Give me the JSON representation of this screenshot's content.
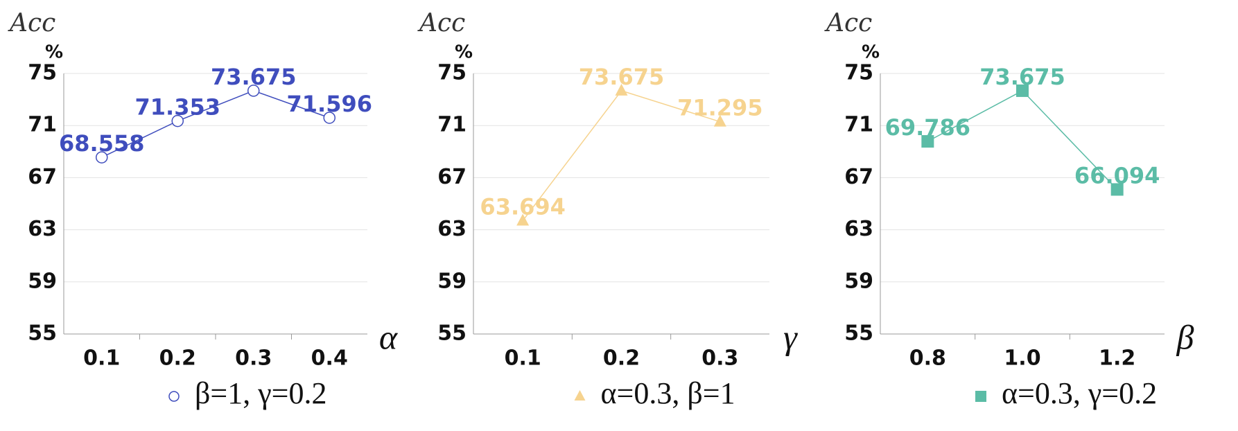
{
  "chart_data": [
    {
      "type": "line",
      "y_title": "Acc",
      "y_unit": "%",
      "x_title": "α",
      "categories": [
        "0.1",
        "0.2",
        "0.3",
        "0.4"
      ],
      "series": [
        {
          "name": "β=1, γ=0.2",
          "color": "#3f4dbd",
          "marker": "circle",
          "values": [
            68.558,
            71.353,
            73.675,
            71.596
          ]
        }
      ],
      "ylim": [
        55,
        75
      ],
      "yticks": [
        55,
        59,
        63,
        67,
        71,
        75
      ],
      "grid": true
    },
    {
      "type": "line",
      "y_title": "Acc",
      "y_unit": "%",
      "x_title": "γ",
      "categories": [
        "0.1",
        "0.2",
        "0.3"
      ],
      "series": [
        {
          "name": "α=0.3, β=1",
          "color": "#f6d38f",
          "marker": "triangle",
          "values": [
            63.694,
            73.675,
            71.295
          ]
        }
      ],
      "ylim": [
        55,
        75
      ],
      "yticks": [
        55,
        59,
        63,
        67,
        71,
        75
      ],
      "grid": true
    },
    {
      "type": "line",
      "y_title": "Acc",
      "y_unit": "%",
      "x_title": "β",
      "categories": [
        "0.8",
        "1.0",
        "1.2"
      ],
      "series": [
        {
          "name": "α=0.3, γ=0.2",
          "color": "#5bbca6",
          "marker": "square",
          "values": [
            69.786,
            73.675,
            66.094
          ]
        }
      ],
      "ylim": [
        55,
        75
      ],
      "yticks": [
        55,
        59,
        63,
        67,
        71,
        75
      ],
      "grid": true
    }
  ]
}
